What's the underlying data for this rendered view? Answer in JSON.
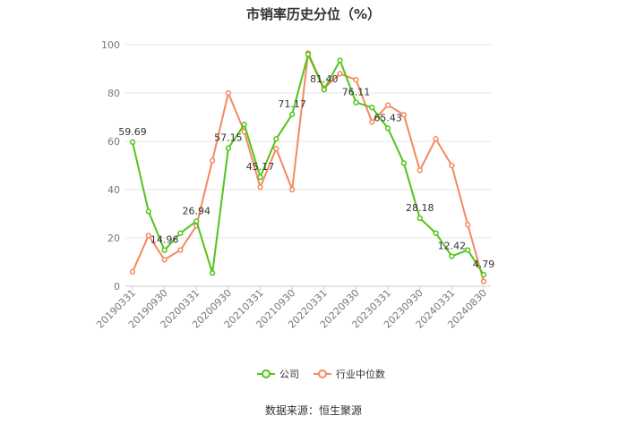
{
  "chart_data": {
    "type": "line",
    "title": "市销率历史分位（%）",
    "source": "数据来源：恒生聚源",
    "ylim": [
      0,
      100
    ],
    "yticks": [
      0,
      20,
      40,
      60,
      80,
      100
    ],
    "x_tick_labels": [
      "20190331",
      "20190930",
      "20200331",
      "20200930",
      "20210331",
      "20210930",
      "20220331",
      "20220930",
      "20230331",
      "20230930",
      "20240331",
      "20240830"
    ],
    "x": [
      "20190331",
      "20190630",
      "20190930",
      "20191231",
      "20200331",
      "20200630",
      "20200930",
      "20201231",
      "20210331",
      "20210630",
      "20210930",
      "20211231",
      "20220331",
      "20220630",
      "20220930",
      "20221231",
      "20230331",
      "20230630",
      "20230930",
      "20231231",
      "20240331",
      "20240630",
      "20240830"
    ],
    "grid": true,
    "legend_position": "bottom",
    "series": [
      {
        "name": "公司",
        "color": "#52c41a",
        "values": [
          59.69,
          31,
          14.96,
          22,
          26.94,
          5.5,
          57.15,
          67,
          45.17,
          61,
          71.17,
          96,
          81.4,
          93.5,
          76.11,
          74,
          65.43,
          51,
          28.18,
          22,
          12.42,
          15,
          4.79
        ],
        "labels": [
          "59.69",
          null,
          "14.96",
          null,
          "26.94",
          null,
          "57.15",
          null,
          "45.17",
          null,
          "71.17",
          null,
          "81.40",
          null,
          "76.11",
          null,
          "65.43",
          null,
          "28.18",
          null,
          "12.42",
          null,
          "4.79"
        ]
      },
      {
        "name": "行业中位数",
        "color": "#f4895f",
        "values": [
          6,
          21,
          11,
          15,
          25,
          52,
          80,
          64,
          41,
          57,
          40,
          96.5,
          82,
          88,
          85.5,
          68,
          75,
          71,
          48,
          61,
          50,
          25.5,
          2
        ]
      }
    ]
  }
}
